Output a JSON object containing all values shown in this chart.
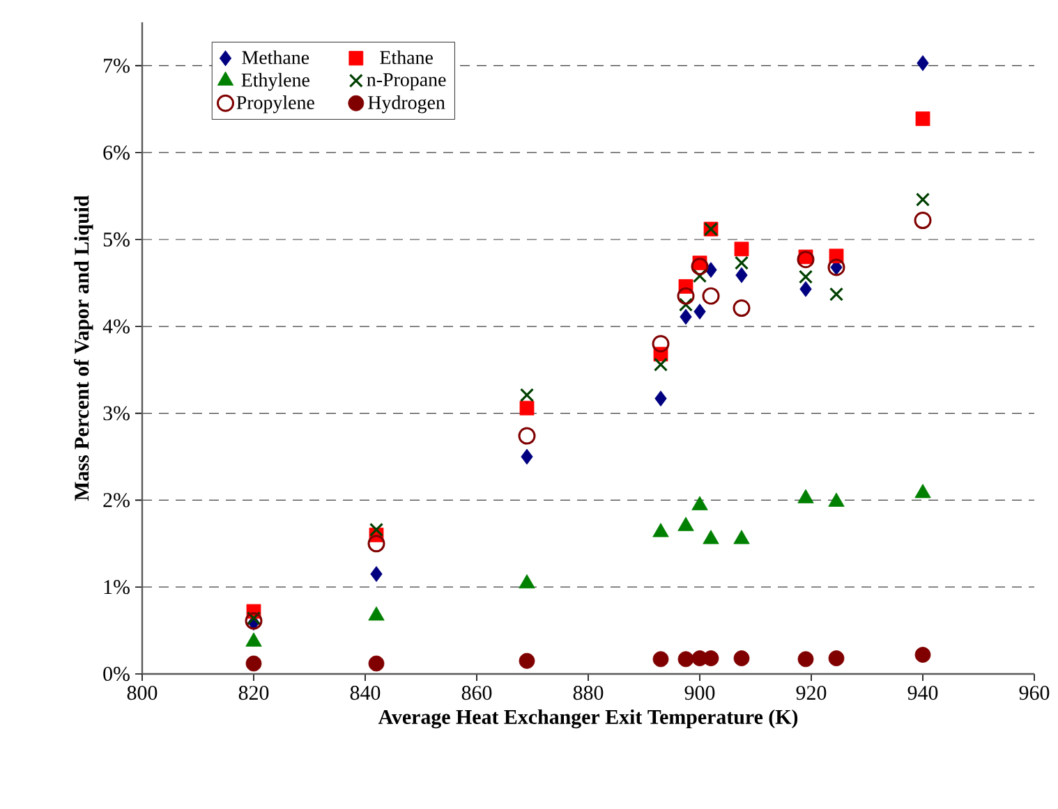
{
  "chart_data": {
    "type": "scatter",
    "xlabel": "Average Heat Exchanger Exit Temperature (K)",
    "ylabel": "Mass Percent of Vapor and Liquid",
    "x": [
      820,
      842,
      869,
      893,
      897.5,
      900,
      902,
      907.5,
      919,
      924.5,
      940
    ],
    "series": [
      {
        "name": "Methane",
        "color": "#000080",
        "marker": "diamond",
        "values": [
          0.59,
          1.15,
          2.5,
          3.17,
          4.11,
          4.17,
          4.65,
          4.59,
          4.43,
          4.68,
          7.03
        ]
      },
      {
        "name": "Ethane",
        "color": "#ff0000",
        "marker": "square",
        "values": [
          0.72,
          1.6,
          3.06,
          3.68,
          4.46,
          4.73,
          5.12,
          4.89,
          4.8,
          4.81,
          6.39
        ]
      },
      {
        "name": "Ethylene",
        "color": "#008000",
        "marker": "triangle",
        "values": [
          0.37,
          0.67,
          1.04,
          1.63,
          1.7,
          1.94,
          1.55,
          1.55,
          2.02,
          1.98,
          2.08
        ]
      },
      {
        "name": "n-Propane",
        "color": "#004000",
        "marker": "cross",
        "values": [
          0.64,
          1.66,
          3.21,
          3.56,
          4.25,
          4.58,
          5.12,
          4.73,
          4.57,
          4.37,
          5.46
        ]
      },
      {
        "name": "Propylene",
        "color": "#800000",
        "marker": "circle",
        "values": [
          0.61,
          1.5,
          2.74,
          3.8,
          4.35,
          4.69,
          4.35,
          4.21,
          4.77,
          4.68,
          5.22
        ]
      },
      {
        "name": "Hydrogen",
        "color": "#800000",
        "marker": "circle",
        "values": [
          0.12,
          0.12,
          0.15,
          0.17,
          0.17,
          0.18,
          0.18,
          0.18,
          0.17,
          0.18,
          0.22
        ]
      }
    ],
    "xlim": [
      800,
      960
    ],
    "xticks": [
      800,
      820,
      840,
      860,
      880,
      900,
      920,
      940,
      960
    ],
    "ylim": [
      0,
      7.5
    ],
    "yticks": [
      {
        "value": 0,
        "label": "0%"
      },
      {
        "value": 1,
        "label": "1%"
      },
      {
        "value": 2,
        "label": "2%"
      },
      {
        "value": 3,
        "label": "3%"
      },
      {
        "value": 4,
        "label": "4%"
      },
      {
        "value": 5,
        "label": "5%"
      },
      {
        "value": 6,
        "label": "6%"
      },
      {
        "value": 7,
        "label": "7%"
      }
    ],
    "grid": "y",
    "legend": "top left"
  }
}
